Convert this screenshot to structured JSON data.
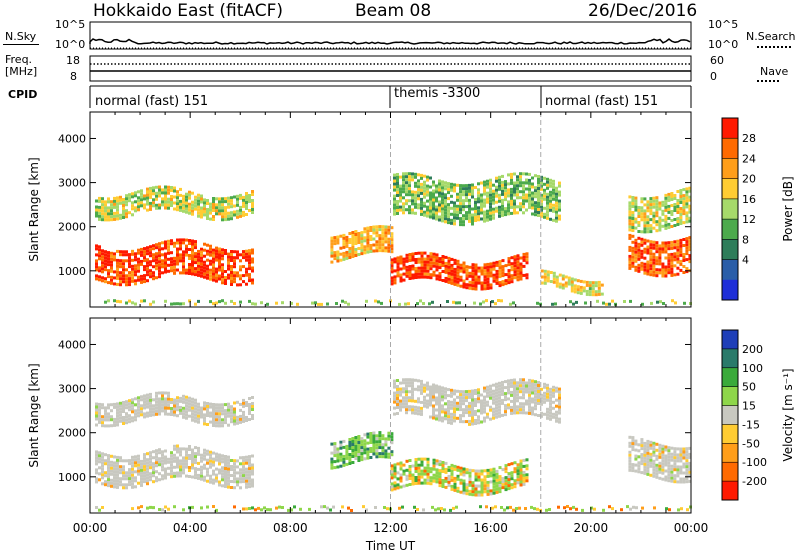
{
  "header": {
    "radar": "Hokkaido East (fitACF)",
    "beam": "Beam 08",
    "date": "26/Dec/2016"
  },
  "top_strip": {
    "nsky_label": "N.Sky",
    "nsky_ticks": [
      "10^5",
      "10^0"
    ],
    "nsearch_label": "N.Search",
    "freq_label_1": "Freq.",
    "freq_label_2": "[MHz]",
    "freq_ticks": [
      "18",
      "8"
    ],
    "nave_label": "Nave",
    "nave_ticks": [
      "60",
      "0"
    ],
    "cpid_label": "CPID",
    "cpid_segments": [
      {
        "label": "normal (fast) 151",
        "start": 0,
        "end": 12
      },
      {
        "label": "themis -3300",
        "start": 12,
        "end": 18
      },
      {
        "label": "normal (fast) 151",
        "start": 18,
        "end": 24
      }
    ]
  },
  "chart_data": [
    {
      "type": "heatmap",
      "panel": "power",
      "ylabel": "Slant Range [km]",
      "ylim": [
        180,
        4600
      ],
      "yticks": [
        1000,
        2000,
        3000,
        4000
      ],
      "xlim": [
        0,
        24
      ],
      "colorbar": {
        "label": "Power [dB]",
        "ticks": [
          "28",
          "24",
          "20",
          "16",
          "12",
          "8",
          "4"
        ],
        "colors": [
          "#ff1a00",
          "#ff6a00",
          "#ff9e1a",
          "#ffcc33",
          "#a6d96a",
          "#4caa4c",
          "#2e7d5a",
          "#2a5ea8",
          "#1f2fd8"
        ]
      },
      "patches": [
        {
          "t0": 0.2,
          "t1": 6.5,
          "r0": 800,
          "r1": 1600,
          "level": 0.95
        },
        {
          "t0": 0.2,
          "t1": 6.5,
          "r0": 2300,
          "r1": 2800,
          "level": 0.55
        },
        {
          "t0": 9.6,
          "t1": 12.0,
          "r0": 1300,
          "r1": 1900,
          "level": 0.7
        },
        {
          "t0": 12.0,
          "t1": 17.5,
          "r0": 700,
          "r1": 1300,
          "level": 0.95
        },
        {
          "t0": 12.1,
          "t1": 18.8,
          "r0": 2200,
          "r1": 3100,
          "level": 0.45
        },
        {
          "t0": 18.0,
          "t1": 20.5,
          "r0": 600,
          "r1": 900,
          "level": 0.6
        },
        {
          "t0": 21.5,
          "t1": 24.0,
          "r0": 1000,
          "r1": 1800,
          "level": 0.9
        },
        {
          "t0": 21.5,
          "t1": 24.0,
          "r0": 2000,
          "r1": 2800,
          "level": 0.55
        }
      ]
    },
    {
      "type": "heatmap",
      "panel": "velocity",
      "ylabel": "Slant Range [km]",
      "xlabel": "Time UT",
      "ylim": [
        180,
        4600
      ],
      "yticks": [
        1000,
        2000,
        3000,
        4000
      ],
      "xlim": [
        0,
        24
      ],
      "xticks": [
        "00:00",
        "04:00",
        "08:00",
        "12:00",
        "16:00",
        "20:00",
        "00:00"
      ],
      "colorbar": {
        "label": "Velocity [m s⁻¹]",
        "ticks": [
          "200",
          "100",
          "50",
          "15",
          "-15",
          "-50",
          "-100",
          "-200"
        ],
        "colors": [
          "#1f3fb8",
          "#2a7a6a",
          "#3aaa3a",
          "#8ed64a",
          "#c8c8c0",
          "#ffcc33",
          "#ff9e1a",
          "#ff6a00",
          "#ff1a00"
        ]
      },
      "patches": [
        {
          "t0": 0.2,
          "t1": 6.5,
          "r0": 900,
          "r1": 1600,
          "level": "gray"
        },
        {
          "t0": 0.2,
          "t1": 6.5,
          "r0": 2300,
          "r1": 2800,
          "level": "gray"
        },
        {
          "t0": 9.6,
          "t1": 12.0,
          "r0": 1300,
          "r1": 1900,
          "level": "green"
        },
        {
          "t0": 12.0,
          "t1": 17.5,
          "r0": 700,
          "r1": 1300,
          "level": "mixed"
        },
        {
          "t0": 12.1,
          "t1": 18.8,
          "r0": 2300,
          "r1": 3100,
          "level": "gray"
        },
        {
          "t0": 21.5,
          "t1": 24.0,
          "r0": 1000,
          "r1": 1800,
          "level": "gray"
        }
      ]
    }
  ]
}
